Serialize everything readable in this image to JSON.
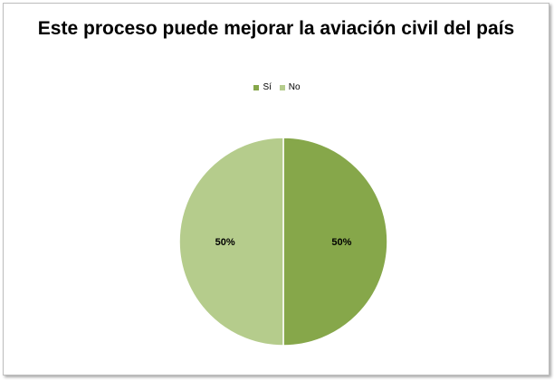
{
  "chart_data": {
    "type": "pie",
    "title": "Este proceso puede mejorar la aviación civil del país",
    "categories": [
      "Sí",
      "No"
    ],
    "values": [
      50,
      50
    ],
    "data_labels": [
      "50%",
      "50%"
    ],
    "colors": [
      "#86a74a",
      "#b5cc8c"
    ],
    "slice_border_color": "#ffffff",
    "legend_position": "top"
  }
}
